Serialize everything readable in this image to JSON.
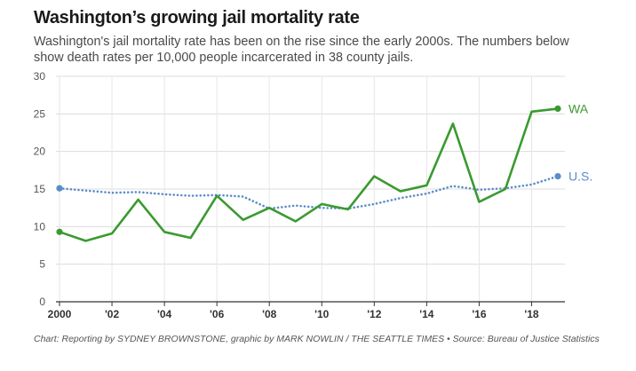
{
  "header": {
    "title": "Washington’s growing jail mortality rate",
    "subtitle": "Washington's jail mortality rate has been on the rise since the early 2000s. The numbers below show death rates per 10,000 people incarcerated in 38 county jails."
  },
  "footer": {
    "source": "Chart: Reporting by SYDNEY BROWNSTONE, graphic by MARK NOWLIN / THE SEATTLE TIMES • Source: Bureau of Justice Statistics"
  },
  "chart_data": {
    "type": "line",
    "title": "Washington’s growing jail mortality rate",
    "xlabel": "",
    "ylabel": "",
    "xlim": [
      2000,
      2019
    ],
    "ylim": [
      0,
      30
    ],
    "grid": true,
    "x_ticks": [
      2000,
      2002,
      2004,
      2006,
      2008,
      2010,
      2012,
      2014,
      2016,
      2018
    ],
    "x_tick_labels": [
      "2000",
      "'02",
      "'04",
      "'06",
      "'08",
      "'10",
      "'12",
      "'14",
      "'16",
      "'18"
    ],
    "y_ticks": [
      0,
      5,
      10,
      15,
      20,
      25,
      30
    ],
    "y_tick_labels": [
      "0",
      "5",
      "10",
      "15",
      "20",
      "25",
      "30"
    ],
    "x": [
      2000,
      2001,
      2002,
      2003,
      2004,
      2005,
      2006,
      2007,
      2008,
      2009,
      2010,
      2011,
      2012,
      2013,
      2014,
      2015,
      2016,
      2017,
      2018,
      2019
    ],
    "series": [
      {
        "name": "WA",
        "label": "WA",
        "color": "#3a9a2f",
        "style": "solid",
        "values": [
          9.3,
          8.1,
          9.1,
          13.6,
          9.3,
          8.5,
          14.1,
          10.9,
          12.5,
          10.7,
          13.0,
          12.3,
          16.7,
          14.7,
          15.5,
          23.7,
          13.3,
          15.0,
          25.3,
          25.7
        ]
      },
      {
        "name": "U.S.",
        "label": "U.S.",
        "color": "#5b8cc9",
        "style": "dotted",
        "values": [
          15.1,
          14.8,
          14.5,
          14.6,
          14.3,
          14.1,
          14.2,
          14.0,
          12.4,
          12.8,
          12.5,
          12.4,
          13.0,
          13.8,
          14.4,
          15.4,
          14.9,
          15.1,
          15.6,
          16.7
        ]
      }
    ]
  }
}
